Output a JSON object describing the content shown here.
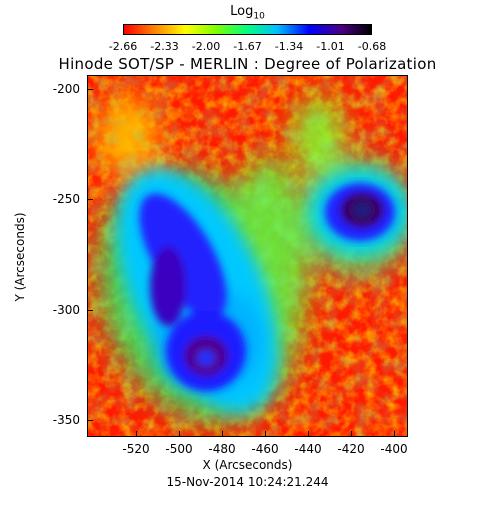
{
  "colorbar": {
    "title_main": "Log",
    "title_sub": "10",
    "ticks": [
      "-2.66",
      "-2.33",
      "-2.00",
      "-1.67",
      "-1.34",
      "-1.01",
      "-0.68"
    ]
  },
  "figure": {
    "title": "Hinode SOT/SP - MERLIN : Degree of Polarization",
    "xlabel": "X (Arcseconds)",
    "ylabel": "Y (Arcseconds)",
    "x_ticks": [
      "-520",
      "-500",
      "-480",
      "-460",
      "-440",
      "-420",
      "-400"
    ],
    "y_ticks": [
      "-200",
      "-250",
      "-300",
      "-350"
    ],
    "timestamp": "15-Nov-2014 10:24:21.244"
  }
}
